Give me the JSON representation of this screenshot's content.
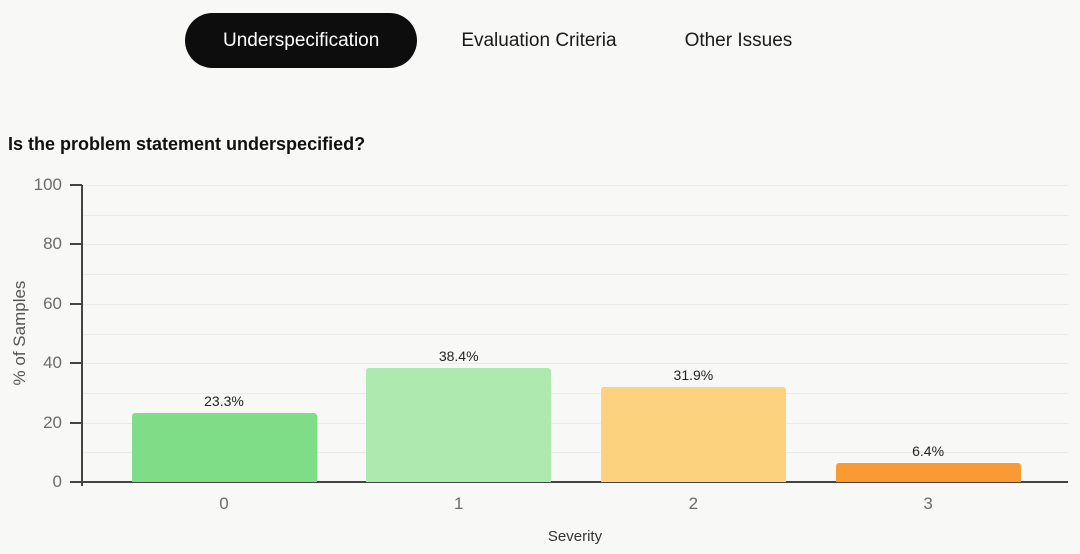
{
  "tabs": {
    "items": [
      {
        "label": "Underspecification",
        "active": true
      },
      {
        "label": "Evaluation Criteria",
        "active": false
      },
      {
        "label": "Other Issues",
        "active": false
      }
    ]
  },
  "chart_data": {
    "type": "bar",
    "title": "Is the problem statement underspecified?",
    "categories": [
      "0",
      "1",
      "2",
      "3"
    ],
    "values": [
      23.3,
      38.4,
      31.9,
      6.4
    ],
    "value_labels": [
      "23.3%",
      "38.4%",
      "31.9%",
      "6.4%"
    ],
    "bar_colors": [
      "#7edd86",
      "#aee9b0",
      "#fdd27e",
      "#fa9a33"
    ],
    "xlabel": "Severity",
    "ylabel": "% of Samples",
    "ylim": [
      0,
      100
    ],
    "yticks": [
      0,
      20,
      40,
      60,
      80,
      100
    ],
    "gridlines_every": 10,
    "legend": "none"
  },
  "colors": {
    "page_background": "#f8f8f7",
    "active_tab_background": "#0d0d0d",
    "active_tab_text": "#ffffff",
    "inactive_tab_text": "#1a1a1a",
    "axis": "#444444",
    "tick_label": "#6b6b6b",
    "gridline": "#edeae8",
    "value_label": "#222222"
  }
}
